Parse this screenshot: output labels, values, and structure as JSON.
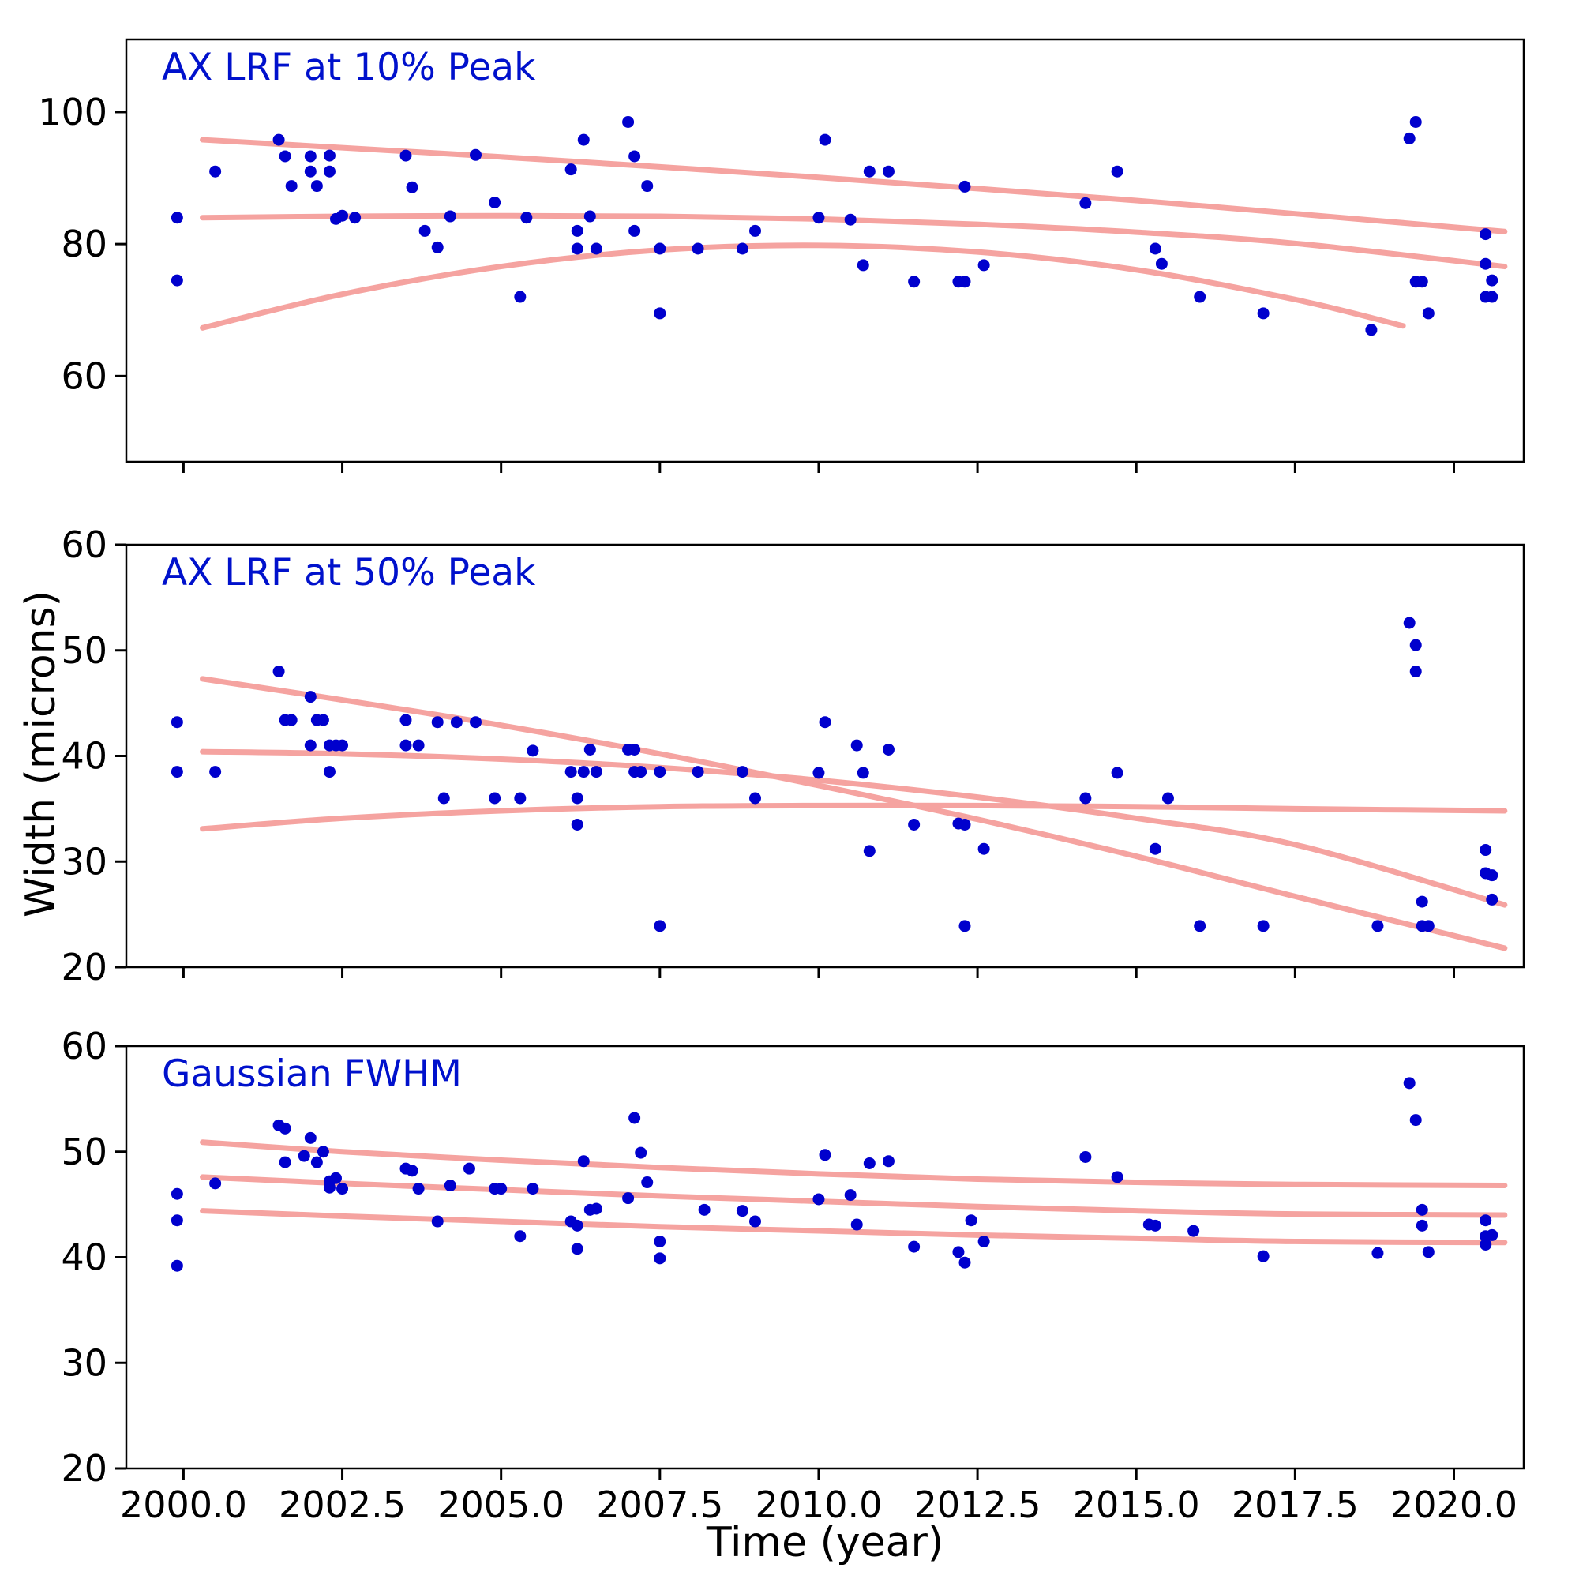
{
  "figure": {
    "xlabel": "Time (year)",
    "ylabel": "Width (microns)",
    "background_color": "#ffffff",
    "point_color": "#0000cd",
    "trend_color": "#f5a3a0",
    "title_color": "#0011cc",
    "spine_color": "#000000"
  },
  "chart_data": [
    {
      "type": "scatter",
      "title": "AX LRF at 10% Peak",
      "xlim": [
        1999.1,
        2021.1
      ],
      "ylim": [
        47,
        111
      ],
      "xticks": [
        2000.0,
        2002.5,
        2005.0,
        2007.5,
        2010.0,
        2012.5,
        2015.0,
        2017.5,
        2020.0
      ],
      "xtick_labels": [
        "2000.0",
        "2002.5",
        "2005.0",
        "2007.5",
        "2010.0",
        "2012.5",
        "2015.0",
        "2017.5",
        "2020.0"
      ],
      "show_xtick_labels": false,
      "yticks": [
        60,
        80,
        100
      ],
      "ytick_labels": [
        "60",
        "80",
        "100"
      ],
      "points": [
        [
          1999.9,
          84.0
        ],
        [
          1999.9,
          74.5
        ],
        [
          2000.5,
          91.0
        ],
        [
          2001.5,
          95.8
        ],
        [
          2001.6,
          93.3
        ],
        [
          2001.7,
          88.8
        ],
        [
          2002.0,
          93.3
        ],
        [
          2002.0,
          91.0
        ],
        [
          2002.1,
          88.8
        ],
        [
          2002.3,
          93.4
        ],
        [
          2002.3,
          91.0
        ],
        [
          2002.4,
          83.8
        ],
        [
          2002.5,
          84.3
        ],
        [
          2002.7,
          84.0
        ],
        [
          2003.5,
          93.4
        ],
        [
          2003.6,
          88.6
        ],
        [
          2003.8,
          82.0
        ],
        [
          2004.0,
          79.5
        ],
        [
          2004.2,
          84.2
        ],
        [
          2004.6,
          93.5
        ],
        [
          2004.9,
          86.3
        ],
        [
          2005.3,
          72.0
        ],
        [
          2005.4,
          84.0
        ],
        [
          2006.1,
          91.3
        ],
        [
          2006.2,
          79.3
        ],
        [
          2006.2,
          82.0
        ],
        [
          2006.3,
          95.8
        ],
        [
          2006.4,
          84.2
        ],
        [
          2006.5,
          79.3
        ],
        [
          2007.0,
          98.5
        ],
        [
          2007.1,
          93.3
        ],
        [
          2007.1,
          82.0
        ],
        [
          2007.3,
          88.8
        ],
        [
          2007.5,
          79.3
        ],
        [
          2007.5,
          69.5
        ],
        [
          2008.1,
          79.3
        ],
        [
          2008.8,
          79.3
        ],
        [
          2009.0,
          82.0
        ],
        [
          2010.0,
          84.0
        ],
        [
          2010.1,
          95.8
        ],
        [
          2010.5,
          83.7
        ],
        [
          2010.7,
          76.8
        ],
        [
          2010.8,
          91.0
        ],
        [
          2011.1,
          91.0
        ],
        [
          2011.5,
          74.3
        ],
        [
          2012.2,
          74.3
        ],
        [
          2012.3,
          74.3
        ],
        [
          2012.3,
          88.7
        ],
        [
          2012.6,
          76.8
        ],
        [
          2014.2,
          86.2
        ],
        [
          2014.7,
          91.0
        ],
        [
          2015.3,
          79.3
        ],
        [
          2015.4,
          77.0
        ],
        [
          2016.0,
          72.0
        ],
        [
          2017.0,
          69.5
        ],
        [
          2018.7,
          67.0
        ],
        [
          2019.3,
          96.0
        ],
        [
          2019.4,
          98.5
        ],
        [
          2019.4,
          74.3
        ],
        [
          2019.5,
          74.3
        ],
        [
          2019.6,
          69.5
        ],
        [
          2020.5,
          81.5
        ],
        [
          2020.5,
          77.0
        ],
        [
          2020.5,
          72.0
        ],
        [
          2020.6,
          74.5
        ],
        [
          2020.6,
          72.0
        ]
      ],
      "trend_lines": [
        [
          [
            2000.3,
            95.8
          ],
          [
            2002.5,
            94.6
          ],
          [
            2005,
            93.2
          ],
          [
            2007.5,
            91.7
          ],
          [
            2010,
            90.1
          ],
          [
            2012.5,
            88.4
          ],
          [
            2015,
            86.6
          ],
          [
            2017.5,
            84.6
          ],
          [
            2020.8,
            81.9
          ]
        ],
        [
          [
            2000.3,
            84.0
          ],
          [
            2002.5,
            84.2
          ],
          [
            2005,
            84.3
          ],
          [
            2007.5,
            84.2
          ],
          [
            2010,
            83.8
          ],
          [
            2012.5,
            83.0
          ],
          [
            2015,
            81.8
          ],
          [
            2017.5,
            80.1
          ],
          [
            2020.8,
            76.6
          ]
        ],
        [
          [
            2000.3,
            67.3
          ],
          [
            2002.5,
            72.4
          ],
          [
            2005,
            76.6
          ],
          [
            2007.5,
            79.1
          ],
          [
            2010,
            79.8
          ],
          [
            2012.5,
            78.8
          ],
          [
            2015,
            76.1
          ],
          [
            2017.5,
            71.6
          ],
          [
            2019.2,
            67.6
          ]
        ]
      ]
    },
    {
      "type": "scatter",
      "title": "AX LRF at 50% Peak",
      "xlim": [
        1999.1,
        2021.1
      ],
      "ylim": [
        20,
        60
      ],
      "xticks": [
        2000.0,
        2002.5,
        2005.0,
        2007.5,
        2010.0,
        2012.5,
        2015.0,
        2017.5,
        2020.0
      ],
      "xtick_labels": [
        "2000.0",
        "2002.5",
        "2005.0",
        "2007.5",
        "2010.0",
        "2012.5",
        "2015.0",
        "2017.5",
        "2020.0"
      ],
      "show_xtick_labels": false,
      "yticks": [
        20,
        30,
        40,
        50,
        60
      ],
      "ytick_labels": [
        "20",
        "30",
        "40",
        "50",
        "60"
      ],
      "points": [
        [
          1999.9,
          43.2
        ],
        [
          1999.9,
          38.5
        ],
        [
          2000.5,
          38.5
        ],
        [
          2001.5,
          48.0
        ],
        [
          2001.6,
          43.4
        ],
        [
          2001.7,
          43.4
        ],
        [
          2002.0,
          45.6
        ],
        [
          2002.0,
          41.0
        ],
        [
          2002.1,
          43.4
        ],
        [
          2002.2,
          43.4
        ],
        [
          2002.3,
          41.0
        ],
        [
          2002.3,
          38.5
        ],
        [
          2002.4,
          41.0
        ],
        [
          2002.5,
          41.0
        ],
        [
          2003.5,
          43.4
        ],
        [
          2003.5,
          41.0
        ],
        [
          2003.7,
          41.0
        ],
        [
          2004.0,
          43.2
        ],
        [
          2004.1,
          36.0
        ],
        [
          2004.3,
          43.2
        ],
        [
          2004.6,
          43.2
        ],
        [
          2004.9,
          36.0
        ],
        [
          2005.3,
          36.0
        ],
        [
          2005.5,
          40.5
        ],
        [
          2006.1,
          38.5
        ],
        [
          2006.2,
          33.5
        ],
        [
          2006.2,
          36.0
        ],
        [
          2006.3,
          38.5
        ],
        [
          2006.4,
          40.6
        ],
        [
          2006.5,
          38.5
        ],
        [
          2007.0,
          40.6
        ],
        [
          2007.1,
          40.6
        ],
        [
          2007.1,
          38.5
        ],
        [
          2007.2,
          38.5
        ],
        [
          2007.5,
          38.5
        ],
        [
          2007.5,
          23.9
        ],
        [
          2008.1,
          38.5
        ],
        [
          2008.8,
          38.5
        ],
        [
          2009.0,
          36.0
        ],
        [
          2010.0,
          38.4
        ],
        [
          2010.1,
          43.2
        ],
        [
          2010.6,
          41.0
        ],
        [
          2010.7,
          38.4
        ],
        [
          2010.8,
          31.0
        ],
        [
          2011.1,
          40.6
        ],
        [
          2011.5,
          33.5
        ],
        [
          2012.2,
          33.6
        ],
        [
          2012.3,
          33.5
        ],
        [
          2012.3,
          23.9
        ],
        [
          2012.6,
          31.2
        ],
        [
          2014.2,
          36.0
        ],
        [
          2014.7,
          38.4
        ],
        [
          2015.3,
          31.2
        ],
        [
          2015.5,
          36.0
        ],
        [
          2016.0,
          23.9
        ],
        [
          2017.0,
          23.9
        ],
        [
          2018.8,
          23.9
        ],
        [
          2019.3,
          52.6
        ],
        [
          2019.4,
          50.5
        ],
        [
          2019.4,
          48.0
        ],
        [
          2019.5,
          26.2
        ],
        [
          2019.5,
          23.9
        ],
        [
          2019.6,
          23.9
        ],
        [
          2020.5,
          31.1
        ],
        [
          2020.5,
          28.9
        ],
        [
          2020.6,
          28.7
        ],
        [
          2020.6,
          26.4
        ]
      ],
      "trend_lines": [
        [
          [
            2000.3,
            47.3
          ],
          [
            2002.5,
            45.3
          ],
          [
            2005,
            42.9
          ],
          [
            2007.5,
            40.2
          ],
          [
            2010,
            37.2
          ],
          [
            2012.5,
            34.0
          ],
          [
            2015,
            30.5
          ],
          [
            2017.5,
            26.7
          ],
          [
            2020.8,
            21.8
          ]
        ],
        [
          [
            2000.3,
            40.4
          ],
          [
            2002.5,
            40.2
          ],
          [
            2005,
            39.7
          ],
          [
            2007.5,
            38.9
          ],
          [
            2010,
            37.7
          ],
          [
            2012.5,
            36.1
          ],
          [
            2015,
            34.1
          ],
          [
            2017.5,
            31.6
          ],
          [
            2020.8,
            25.9
          ]
        ],
        [
          [
            2000.3,
            33.1
          ],
          [
            2002.5,
            34.1
          ],
          [
            2005,
            34.8
          ],
          [
            2007.5,
            35.2
          ],
          [
            2010,
            35.3
          ],
          [
            2012.5,
            35.3
          ],
          [
            2015,
            35.2
          ],
          [
            2017.5,
            35.0
          ],
          [
            2020.8,
            34.8
          ]
        ]
      ]
    },
    {
      "type": "scatter",
      "title": "Gaussian FWHM",
      "xlim": [
        1999.1,
        2021.1
      ],
      "ylim": [
        20,
        60
      ],
      "xticks": [
        2000.0,
        2002.5,
        2005.0,
        2007.5,
        2010.0,
        2012.5,
        2015.0,
        2017.5,
        2020.0
      ],
      "xtick_labels": [
        "2000.0",
        "2002.5",
        "2005.0",
        "2007.5",
        "2010.0",
        "2012.5",
        "2015.0",
        "2017.5",
        "2020.0"
      ],
      "show_xtick_labels": true,
      "yticks": [
        20,
        30,
        40,
        50,
        60
      ],
      "ytick_labels": [
        "20",
        "30",
        "40",
        "50",
        "60"
      ],
      "points": [
        [
          1999.9,
          46.0
        ],
        [
          1999.9,
          43.5
        ],
        [
          1999.9,
          39.2
        ],
        [
          2000.5,
          47.0
        ],
        [
          2001.5,
          52.5
        ],
        [
          2001.6,
          52.2
        ],
        [
          2001.6,
          49.0
        ],
        [
          2001.9,
          49.6
        ],
        [
          2002.0,
          51.3
        ],
        [
          2002.1,
          49.0
        ],
        [
          2002.2,
          50.0
        ],
        [
          2002.3,
          46.6
        ],
        [
          2002.3,
          47.2
        ],
        [
          2002.4,
          47.5
        ],
        [
          2002.5,
          46.5
        ],
        [
          2003.5,
          48.4
        ],
        [
          2003.6,
          48.2
        ],
        [
          2003.7,
          46.5
        ],
        [
          2004.0,
          43.4
        ],
        [
          2004.2,
          46.8
        ],
        [
          2004.5,
          48.4
        ],
        [
          2004.9,
          46.5
        ],
        [
          2005.0,
          46.5
        ],
        [
          2005.3,
          42.0
        ],
        [
          2005.5,
          46.5
        ],
        [
          2006.1,
          43.4
        ],
        [
          2006.2,
          40.8
        ],
        [
          2006.2,
          43.0
        ],
        [
          2006.3,
          49.1
        ],
        [
          2006.4,
          44.5
        ],
        [
          2006.5,
          44.6
        ],
        [
          2007.0,
          45.6
        ],
        [
          2007.1,
          53.2
        ],
        [
          2007.2,
          49.9
        ],
        [
          2007.3,
          47.1
        ],
        [
          2007.5,
          41.5
        ],
        [
          2007.5,
          39.9
        ],
        [
          2008.2,
          44.5
        ],
        [
          2008.8,
          44.4
        ],
        [
          2009.0,
          43.4
        ],
        [
          2010.0,
          45.5
        ],
        [
          2010.1,
          49.7
        ],
        [
          2010.5,
          45.9
        ],
        [
          2010.6,
          43.1
        ],
        [
          2010.8,
          48.9
        ],
        [
          2011.1,
          49.1
        ],
        [
          2011.5,
          41.0
        ],
        [
          2012.2,
          40.5
        ],
        [
          2012.3,
          39.5
        ],
        [
          2012.4,
          43.5
        ],
        [
          2012.6,
          41.5
        ],
        [
          2014.2,
          49.5
        ],
        [
          2014.7,
          47.6
        ],
        [
          2015.2,
          43.1
        ],
        [
          2015.3,
          43.0
        ],
        [
          2015.9,
          42.5
        ],
        [
          2017.0,
          40.1
        ],
        [
          2018.8,
          40.4
        ],
        [
          2019.3,
          56.5
        ],
        [
          2019.4,
          53.0
        ],
        [
          2019.5,
          44.5
        ],
        [
          2019.5,
          43.0
        ],
        [
          2019.6,
          40.5
        ],
        [
          2020.5,
          43.5
        ],
        [
          2020.5,
          42.0
        ],
        [
          2020.5,
          41.2
        ],
        [
          2020.6,
          42.1
        ]
      ],
      "trend_lines": [
        [
          [
            2000.3,
            50.9
          ],
          [
            2002.5,
            50.0
          ],
          [
            2005,
            49.2
          ],
          [
            2007.5,
            48.5
          ],
          [
            2010,
            47.9
          ],
          [
            2012.5,
            47.4
          ],
          [
            2015,
            47.1
          ],
          [
            2017.5,
            46.9
          ],
          [
            2020.8,
            46.8
          ]
        ],
        [
          [
            2000.3,
            47.6
          ],
          [
            2002.5,
            47.0
          ],
          [
            2005,
            46.4
          ],
          [
            2007.5,
            45.8
          ],
          [
            2010,
            45.3
          ],
          [
            2012.5,
            44.8
          ],
          [
            2015,
            44.4
          ],
          [
            2017.5,
            44.1
          ],
          [
            2020.8,
            44.0
          ]
        ],
        [
          [
            2000.3,
            44.4
          ],
          [
            2002.5,
            43.9
          ],
          [
            2005,
            43.4
          ],
          [
            2007.5,
            42.9
          ],
          [
            2010,
            42.5
          ],
          [
            2012.5,
            42.1
          ],
          [
            2015,
            41.8
          ],
          [
            2017.5,
            41.5
          ],
          [
            2020.8,
            41.4
          ]
        ]
      ]
    }
  ]
}
